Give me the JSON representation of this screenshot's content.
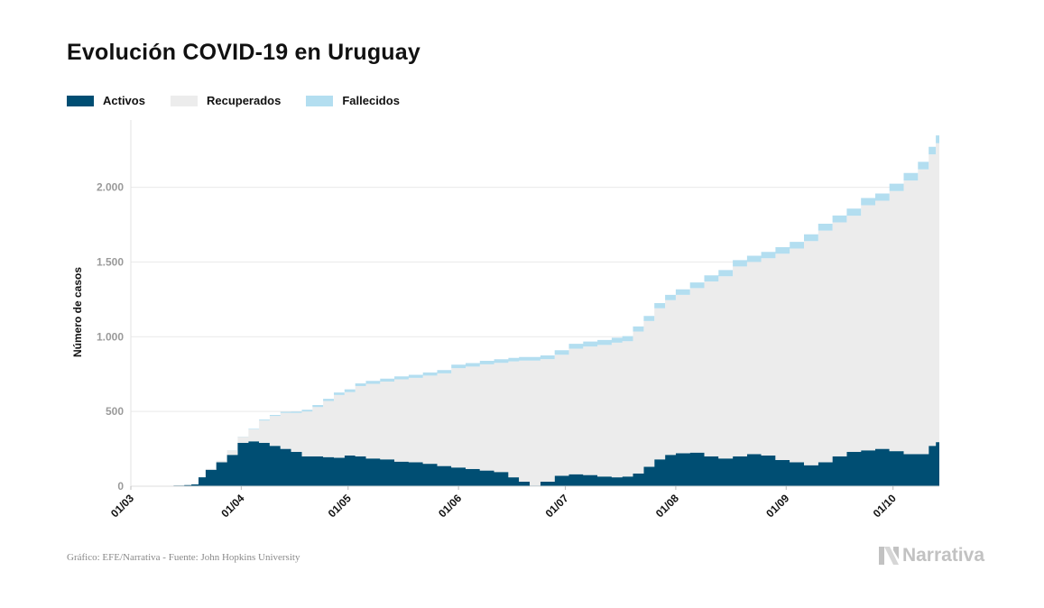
{
  "chart_data": {
    "type": "area",
    "stacked": true,
    "title": "Evolución COVID-19 en Uruguay",
    "ylabel": "Número de casos",
    "xlabel": "",
    "ylim": [
      0,
      2450
    ],
    "y_ticks": [
      0,
      500,
      1000,
      1500,
      2000
    ],
    "y_tick_labels": [
      "0",
      "500",
      "1.000",
      "1.500",
      "2.000"
    ],
    "x_ticks": [
      "2020-03-01",
      "2020-04-01",
      "2020-05-01",
      "2020-06-01",
      "2020-07-01",
      "2020-08-01",
      "2020-09-01",
      "2020-10-01"
    ],
    "x_tick_labels": [
      "01/03",
      "01/04",
      "01/05",
      "01/06",
      "01/07",
      "01/08",
      "01/09",
      "01/10"
    ],
    "xlim": [
      "2020-03-01",
      "2020-10-14"
    ],
    "grid": true,
    "legend_position": "top-left",
    "dates": [
      "2020-03-13",
      "2020-03-16",
      "2020-03-18",
      "2020-03-20",
      "2020-03-22",
      "2020-03-25",
      "2020-03-28",
      "2020-03-31",
      "2020-04-03",
      "2020-04-06",
      "2020-04-09",
      "2020-04-12",
      "2020-04-15",
      "2020-04-18",
      "2020-04-21",
      "2020-04-24",
      "2020-04-27",
      "2020-04-30",
      "2020-05-03",
      "2020-05-06",
      "2020-05-10",
      "2020-05-14",
      "2020-05-18",
      "2020-05-22",
      "2020-05-26",
      "2020-05-30",
      "2020-06-03",
      "2020-06-07",
      "2020-06-11",
      "2020-06-15",
      "2020-06-18",
      "2020-06-21",
      "2020-06-24",
      "2020-06-28",
      "2020-07-02",
      "2020-07-06",
      "2020-07-10",
      "2020-07-14",
      "2020-07-17",
      "2020-07-20",
      "2020-07-23",
      "2020-07-26",
      "2020-07-29",
      "2020-08-01",
      "2020-08-05",
      "2020-08-09",
      "2020-08-13",
      "2020-08-17",
      "2020-08-21",
      "2020-08-25",
      "2020-08-29",
      "2020-09-02",
      "2020-09-06",
      "2020-09-10",
      "2020-09-14",
      "2020-09-18",
      "2020-09-22",
      "2020-09-26",
      "2020-09-30",
      "2020-10-04",
      "2020-10-08",
      "2020-10-11",
      "2020-10-13"
    ],
    "series": [
      {
        "name": "Activos",
        "color": "#004e73",
        "values": [
          4,
          8,
          12,
          60,
          110,
          160,
          210,
          290,
          300,
          290,
          270,
          250,
          230,
          200,
          200,
          195,
          190,
          205,
          200,
          185,
          180,
          165,
          160,
          150,
          135,
          125,
          115,
          105,
          95,
          60,
          30,
          5,
          30,
          70,
          80,
          75,
          65,
          60,
          65,
          85,
          130,
          180,
          210,
          220,
          225,
          200,
          185,
          200,
          215,
          205,
          175,
          160,
          140,
          160,
          200,
          230,
          240,
          250,
          235,
          215,
          215,
          270,
          295
        ]
      },
      {
        "name": "Recuperados",
        "color": "#ececec",
        "values": [
          0,
          0,
          0,
          0,
          5,
          10,
          30,
          40,
          80,
          150,
          200,
          240,
          260,
          300,
          330,
          375,
          420,
          425,
          470,
          500,
          520,
          550,
          565,
          590,
          620,
          665,
          685,
          710,
          730,
          775,
          810,
          835,
          820,
          810,
          840,
          860,
          880,
          900,
          905,
          950,
          975,
          1010,
          1035,
          1060,
          1100,
          1170,
          1220,
          1270,
          1285,
          1320,
          1380,
          1430,
          1500,
          1550,
          1565,
          1580,
          1640,
          1660,
          1740,
          1830,
          1905,
          1950,
          2000
        ]
      },
      {
        "name": "Fallecidos",
        "color": "#b3def0",
        "values": [
          0,
          0,
          0,
          0,
          0,
          1,
          1,
          2,
          4,
          6,
          7,
          8,
          9,
          12,
          13,
          15,
          17,
          18,
          18,
          19,
          20,
          20,
          20,
          21,
          22,
          23,
          24,
          24,
          24,
          24,
          24,
          24,
          25,
          30,
          33,
          33,
          33,
          33,
          34,
          34,
          34,
          35,
          35,
          37,
          38,
          40,
          41,
          42,
          42,
          43,
          44,
          45,
          45,
          46,
          46,
          47,
          48,
          48,
          49,
          50,
          50,
          51,
          52
        ]
      }
    ]
  },
  "source_text": "Gráfico: EFE/Narrativa - Fuente: John Hopkins University",
  "brand": {
    "name": "Narrativa",
    "icon": "narrativa-n-icon"
  }
}
